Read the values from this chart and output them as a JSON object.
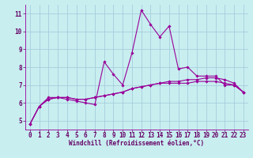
{
  "bg_color": "#c8eef0",
  "grid_color": "#a0c8d8",
  "line_color": "#990099",
  "marker_color": "#990099",
  "xlabel": "Windchill (Refroidissement éolien,°C)",
  "xlim": [
    -0.5,
    23.5
  ],
  "ylim": [
    4.5,
    11.5
  ],
  "yticks": [
    5,
    6,
    7,
    8,
    9,
    10,
    11
  ],
  "xticks": [
    0,
    1,
    2,
    3,
    4,
    5,
    6,
    7,
    8,
    9,
    10,
    11,
    12,
    13,
    14,
    15,
    16,
    17,
    18,
    19,
    20,
    21,
    22,
    23
  ],
  "series1": {
    "x": [
      0,
      1,
      2,
      3,
      4,
      5,
      6,
      7,
      8,
      9,
      10,
      11,
      12,
      13,
      14,
      15,
      16,
      17,
      18,
      19,
      20,
      21,
      22,
      23
    ],
    "y": [
      4.8,
      5.8,
      6.3,
      6.3,
      6.2,
      6.1,
      6.0,
      5.9,
      8.3,
      7.6,
      7.0,
      8.8,
      11.2,
      10.4,
      9.7,
      10.3,
      7.9,
      8.0,
      7.5,
      7.5,
      7.5,
      7.0,
      7.0,
      6.6
    ]
  },
  "series2": {
    "x": [
      0,
      1,
      2,
      3,
      4,
      5,
      6,
      7,
      8,
      9,
      10,
      11,
      12,
      13,
      14,
      15,
      16,
      17,
      18,
      19,
      20,
      21,
      22,
      23
    ],
    "y": [
      4.8,
      5.8,
      6.2,
      6.3,
      6.3,
      6.2,
      6.2,
      6.3,
      6.4,
      6.5,
      6.6,
      6.8,
      6.9,
      7.0,
      7.1,
      7.1,
      7.1,
      7.1,
      7.2,
      7.2,
      7.2,
      7.1,
      7.0,
      6.6
    ]
  },
  "series3": {
    "x": [
      0,
      1,
      2,
      3,
      4,
      5,
      6,
      7,
      8,
      9,
      10,
      11,
      12,
      13,
      14,
      15,
      16,
      17,
      18,
      19,
      20,
      21,
      22,
      23
    ],
    "y": [
      4.8,
      5.8,
      6.2,
      6.3,
      6.3,
      6.2,
      6.2,
      6.3,
      6.4,
      6.5,
      6.6,
      6.8,
      6.9,
      7.0,
      7.1,
      7.2,
      7.2,
      7.3,
      7.3,
      7.4,
      7.4,
      7.3,
      7.1,
      6.6
    ]
  },
  "tick_color": "#660066",
  "xlabel_color": "#660066",
  "font_family": "monospace",
  "tick_fontsize": 5.5,
  "xlabel_fontsize": 5.5
}
